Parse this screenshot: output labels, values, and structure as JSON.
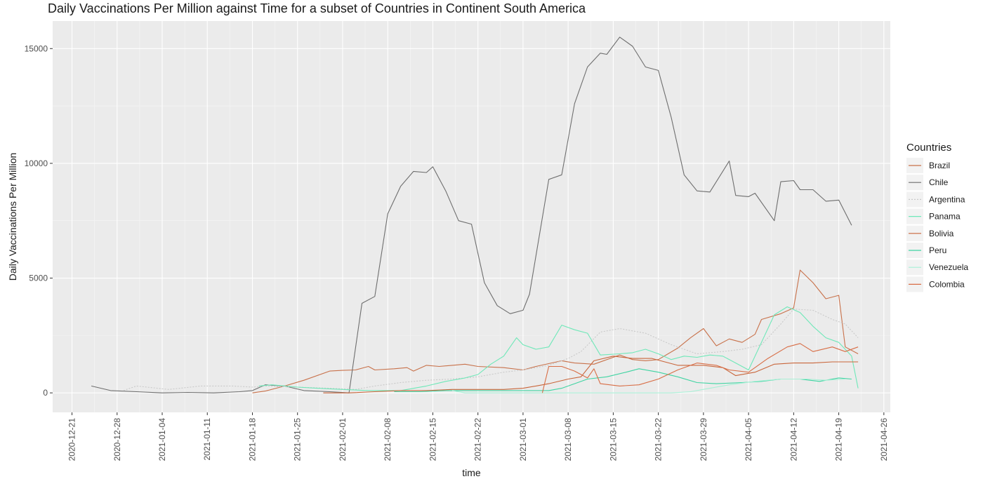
{
  "chart_data": {
    "type": "line",
    "title": "Daily Vaccinations Per Million against Time for a subset of Countries in Continent South America",
    "xlabel": "time",
    "ylabel": "Daily Vaccinations Per Million",
    "x_ticks": [
      "2020-12-21",
      "2020-12-28",
      "2021-01-04",
      "2021-01-11",
      "2021-01-18",
      "2021-01-25",
      "2021-02-01",
      "2021-02-08",
      "2021-02-15",
      "2021-02-22",
      "2021-03-01",
      "2021-03-08",
      "2021-03-15",
      "2021-03-22",
      "2021-03-29",
      "2021-04-05",
      "2021-04-12",
      "2021-04-19",
      "2021-04-26"
    ],
    "y_ticks": [
      0,
      5000,
      10000,
      15000
    ],
    "xlim": [
      "2020-12-18",
      "2021-04-27"
    ],
    "ylim": [
      -850,
      16200
    ],
    "grid": true,
    "legend_placement": "right",
    "legend_title": "Countries",
    "series": [
      {
        "name": "Brazil",
        "color": "#c8714a",
        "dash": "",
        "points": [
          [
            "2021-01-18",
            0
          ],
          [
            "2021-01-20",
            80
          ],
          [
            "2021-01-23",
            300
          ],
          [
            "2021-01-26",
            550
          ],
          [
            "2021-01-30",
            950
          ],
          [
            "2021-02-01",
            980
          ],
          [
            "2021-02-03",
            1000
          ],
          [
            "2021-02-05",
            1150
          ],
          [
            "2021-02-06",
            1000
          ],
          [
            "2021-02-09",
            1050
          ],
          [
            "2021-02-11",
            1100
          ],
          [
            "2021-02-12",
            950
          ],
          [
            "2021-02-14",
            1200
          ],
          [
            "2021-02-16",
            1150
          ],
          [
            "2021-02-18",
            1200
          ],
          [
            "2021-02-20",
            1250
          ],
          [
            "2021-02-22",
            1150
          ],
          [
            "2021-02-26",
            1100
          ],
          [
            "2021-03-01",
            1000
          ],
          [
            "2021-03-03",
            1150
          ],
          [
            "2021-03-07",
            1400
          ],
          [
            "2021-03-09",
            1300
          ],
          [
            "2021-03-12",
            1250
          ],
          [
            "2021-03-16",
            1650
          ],
          [
            "2021-03-18",
            1450
          ],
          [
            "2021-03-20",
            1400
          ],
          [
            "2021-03-22",
            1450
          ],
          [
            "2021-03-25",
            1950
          ],
          [
            "2021-03-27",
            2400
          ],
          [
            "2021-03-29",
            2800
          ],
          [
            "2021-03-31",
            2050
          ],
          [
            "2021-04-02",
            2350
          ],
          [
            "2021-04-04",
            2200
          ],
          [
            "2021-04-06",
            2550
          ],
          [
            "2021-04-07",
            3200
          ],
          [
            "2021-04-10",
            3450
          ],
          [
            "2021-04-12",
            3700
          ],
          [
            "2021-04-13",
            5350
          ],
          [
            "2021-04-15",
            4800
          ],
          [
            "2021-04-17",
            4100
          ],
          [
            "2021-04-19",
            4250
          ],
          [
            "2021-04-20",
            2000
          ],
          [
            "2021-04-22",
            1700
          ]
        ]
      },
      {
        "name": "Chile",
        "color": "#6e6e6e",
        "dash": "",
        "points": [
          [
            "2020-12-24",
            300
          ],
          [
            "2020-12-27",
            100
          ],
          [
            "2020-12-31",
            50
          ],
          [
            "2021-01-04",
            0
          ],
          [
            "2021-01-08",
            20
          ],
          [
            "2021-01-12",
            0
          ],
          [
            "2021-01-16",
            50
          ],
          [
            "2021-01-18",
            100
          ],
          [
            "2021-01-20",
            350
          ],
          [
            "2021-01-23",
            300
          ],
          [
            "2021-01-26",
            100
          ],
          [
            "2021-01-30",
            50
          ],
          [
            "2021-02-02",
            0
          ],
          [
            "2021-02-04",
            3900
          ],
          [
            "2021-02-06",
            4200
          ],
          [
            "2021-02-08",
            7800
          ],
          [
            "2021-02-10",
            9000
          ],
          [
            "2021-02-12",
            9650
          ],
          [
            "2021-02-14",
            9600
          ],
          [
            "2021-02-15",
            9850
          ],
          [
            "2021-02-17",
            8800
          ],
          [
            "2021-02-19",
            7500
          ],
          [
            "2021-02-21",
            7350
          ],
          [
            "2021-02-23",
            4800
          ],
          [
            "2021-02-25",
            3800
          ],
          [
            "2021-02-27",
            3450
          ],
          [
            "2021-03-01",
            3600
          ],
          [
            "2021-03-02",
            4300
          ],
          [
            "2021-03-05",
            9300
          ],
          [
            "2021-03-07",
            9500
          ],
          [
            "2021-03-09",
            12600
          ],
          [
            "2021-03-11",
            14200
          ],
          [
            "2021-03-13",
            14800
          ],
          [
            "2021-03-14",
            14750
          ],
          [
            "2021-03-16",
            15500
          ],
          [
            "2021-03-18",
            15100
          ],
          [
            "2021-03-20",
            14200
          ],
          [
            "2021-03-22",
            14050
          ],
          [
            "2021-03-24",
            12000
          ],
          [
            "2021-03-26",
            9500
          ],
          [
            "2021-03-28",
            8800
          ],
          [
            "2021-03-30",
            8750
          ],
          [
            "2021-04-02",
            10100
          ],
          [
            "2021-04-03",
            8600
          ],
          [
            "2021-04-05",
            8550
          ],
          [
            "2021-04-06",
            8700
          ],
          [
            "2021-04-09",
            7500
          ],
          [
            "2021-04-10",
            9200
          ],
          [
            "2021-04-12",
            9250
          ],
          [
            "2021-04-13",
            8850
          ],
          [
            "2021-04-15",
            8850
          ],
          [
            "2021-04-17",
            8350
          ],
          [
            "2021-04-19",
            8400
          ],
          [
            "2021-04-21",
            7300
          ]
        ]
      },
      {
        "name": "Argentina",
        "color": "#c9c9c9",
        "dash": "2,2",
        "points": [
          [
            "2020-12-29",
            100
          ],
          [
            "2020-12-31",
            300
          ],
          [
            "2021-01-05",
            150
          ],
          [
            "2021-01-10",
            300
          ],
          [
            "2021-01-15",
            300
          ],
          [
            "2021-01-18",
            250
          ],
          [
            "2021-01-20",
            300
          ],
          [
            "2021-01-25",
            250
          ],
          [
            "2021-01-30",
            200
          ],
          [
            "2021-02-03",
            150
          ],
          [
            "2021-02-06",
            300
          ],
          [
            "2021-02-10",
            450
          ],
          [
            "2021-02-14",
            550
          ],
          [
            "2021-02-18",
            600
          ],
          [
            "2021-02-22",
            700
          ],
          [
            "2021-02-26",
            900
          ],
          [
            "2021-03-01",
            1000
          ],
          [
            "2021-03-05",
            1200
          ],
          [
            "2021-03-08",
            1500
          ],
          [
            "2021-03-10",
            1800
          ],
          [
            "2021-03-13",
            2650
          ],
          [
            "2021-03-16",
            2800
          ],
          [
            "2021-03-20",
            2600
          ],
          [
            "2021-03-24",
            2100
          ],
          [
            "2021-03-28",
            1700
          ],
          [
            "2021-04-01",
            1800
          ],
          [
            "2021-04-04",
            1900
          ],
          [
            "2021-04-07",
            2100
          ],
          [
            "2021-04-10",
            3000
          ],
          [
            "2021-04-12",
            3650
          ],
          [
            "2021-04-15",
            3600
          ],
          [
            "2021-04-18",
            3200
          ],
          [
            "2021-04-20",
            3000
          ],
          [
            "2021-04-22",
            2400
          ]
        ]
      },
      {
        "name": "Panama",
        "color": "#6ee8b8",
        "dash": "",
        "points": [
          [
            "2021-01-19",
            300
          ],
          [
            "2021-01-21",
            350
          ],
          [
            "2021-01-25",
            250
          ],
          [
            "2021-01-28",
            200
          ],
          [
            "2021-02-01",
            150
          ],
          [
            "2021-02-05",
            100
          ],
          [
            "2021-02-10",
            100
          ],
          [
            "2021-02-14",
            300
          ],
          [
            "2021-02-17",
            500
          ],
          [
            "2021-02-20",
            650
          ],
          [
            "2021-02-22",
            800
          ],
          [
            "2021-02-24",
            1250
          ],
          [
            "2021-02-26",
            1600
          ],
          [
            "2021-02-28",
            2400
          ],
          [
            "2021-03-01",
            2100
          ],
          [
            "2021-03-03",
            1900
          ],
          [
            "2021-03-05",
            2000
          ],
          [
            "2021-03-07",
            2950
          ],
          [
            "2021-03-09",
            2750
          ],
          [
            "2021-03-11",
            2600
          ],
          [
            "2021-03-13",
            1650
          ],
          [
            "2021-03-16",
            1700
          ],
          [
            "2021-03-18",
            1750
          ],
          [
            "2021-03-20",
            1900
          ],
          [
            "2021-03-22",
            1700
          ],
          [
            "2021-03-24",
            1450
          ],
          [
            "2021-03-26",
            1600
          ],
          [
            "2021-03-28",
            1550
          ],
          [
            "2021-03-30",
            1650
          ],
          [
            "2021-04-01",
            1600
          ],
          [
            "2021-04-03",
            1300
          ],
          [
            "2021-04-05",
            1000
          ],
          [
            "2021-04-07",
            2200
          ],
          [
            "2021-04-09",
            3400
          ],
          [
            "2021-04-11",
            3750
          ],
          [
            "2021-04-13",
            3500
          ],
          [
            "2021-04-15",
            2900
          ],
          [
            "2021-04-17",
            2400
          ],
          [
            "2021-04-19",
            2200
          ],
          [
            "2021-04-21",
            1600
          ],
          [
            "2021-04-22",
            200
          ]
        ]
      },
      {
        "name": "Bolivia",
        "color": "#c9653a",
        "dash": "",
        "points": [
          [
            "2021-01-29",
            0
          ],
          [
            "2021-02-02",
            0
          ],
          [
            "2021-02-06",
            50
          ],
          [
            "2021-02-10",
            100
          ],
          [
            "2021-02-14",
            100
          ],
          [
            "2021-02-18",
            150
          ],
          [
            "2021-02-22",
            150
          ],
          [
            "2021-02-26",
            150
          ],
          [
            "2021-03-01",
            200
          ],
          [
            "2021-03-03",
            300
          ],
          [
            "2021-03-05",
            400
          ],
          [
            "2021-03-08",
            600
          ],
          [
            "2021-03-10",
            700
          ],
          [
            "2021-03-12",
            1400
          ],
          [
            "2021-03-15",
            1600
          ],
          [
            "2021-03-18",
            1500
          ],
          [
            "2021-03-21",
            1500
          ],
          [
            "2021-03-25",
            1200
          ],
          [
            "2021-03-29",
            1200
          ],
          [
            "2021-04-01",
            1100
          ],
          [
            "2021-04-03",
            750
          ],
          [
            "2021-04-06",
            900
          ],
          [
            "2021-04-09",
            1250
          ],
          [
            "2021-04-12",
            1300
          ],
          [
            "2021-04-15",
            1300
          ],
          [
            "2021-04-18",
            1350
          ],
          [
            "2021-04-22",
            1350
          ]
        ]
      },
      {
        "name": "Peru",
        "color": "#3fd4a2",
        "dash": "",
        "points": [
          [
            "2021-02-09",
            50
          ],
          [
            "2021-02-13",
            50
          ],
          [
            "2021-02-17",
            100
          ],
          [
            "2021-02-21",
            100
          ],
          [
            "2021-02-25",
            100
          ],
          [
            "2021-03-01",
            100
          ],
          [
            "2021-03-05",
            100
          ],
          [
            "2021-03-07",
            200
          ],
          [
            "2021-03-09",
            400
          ],
          [
            "2021-03-11",
            600
          ],
          [
            "2021-03-14",
            700
          ],
          [
            "2021-03-17",
            900
          ],
          [
            "2021-03-19",
            1050
          ],
          [
            "2021-03-22",
            900
          ],
          [
            "2021-03-25",
            700
          ],
          [
            "2021-03-28",
            450
          ],
          [
            "2021-03-31",
            400
          ],
          [
            "2021-04-04",
            450
          ],
          [
            "2021-04-07",
            500
          ],
          [
            "2021-04-10",
            600
          ],
          [
            "2021-04-13",
            600
          ],
          [
            "2021-04-16",
            500
          ],
          [
            "2021-04-19",
            650
          ],
          [
            "2021-04-21",
            600
          ]
        ]
      },
      {
        "name": "Venezuela",
        "color": "#a8f0d6",
        "dash": "",
        "points": [
          [
            "2021-02-18",
            100
          ],
          [
            "2021-02-20",
            0
          ],
          [
            "2021-02-24",
            0
          ],
          [
            "2021-02-28",
            0
          ],
          [
            "2021-03-04",
            0
          ],
          [
            "2021-03-08",
            0
          ],
          [
            "2021-03-12",
            0
          ],
          [
            "2021-03-16",
            0
          ],
          [
            "2021-03-20",
            0
          ],
          [
            "2021-03-24",
            0
          ],
          [
            "2021-03-27",
            50
          ],
          [
            "2021-03-30",
            200
          ],
          [
            "2021-04-02",
            350
          ],
          [
            "2021-04-06",
            500
          ],
          [
            "2021-04-10",
            600
          ],
          [
            "2021-04-14",
            600
          ],
          [
            "2021-04-17",
            550
          ],
          [
            "2021-04-20",
            600
          ]
        ]
      },
      {
        "name": "Colombia",
        "color": "#d86d45",
        "dash": "",
        "points": [
          [
            "2021-03-04",
            0
          ],
          [
            "2021-03-05",
            1150
          ],
          [
            "2021-03-07",
            1150
          ],
          [
            "2021-03-09",
            950
          ],
          [
            "2021-03-11",
            650
          ],
          [
            "2021-03-12",
            1050
          ],
          [
            "2021-03-13",
            400
          ],
          [
            "2021-03-16",
            300
          ],
          [
            "2021-03-19",
            350
          ],
          [
            "2021-03-22",
            600
          ],
          [
            "2021-03-25",
            1000
          ],
          [
            "2021-03-28",
            1300
          ],
          [
            "2021-03-31",
            1200
          ],
          [
            "2021-04-02",
            1000
          ],
          [
            "2021-04-05",
            900
          ],
          [
            "2021-04-08",
            1500
          ],
          [
            "2021-04-11",
            2000
          ],
          [
            "2021-04-13",
            2150
          ],
          [
            "2021-04-15",
            1800
          ],
          [
            "2021-04-18",
            2000
          ],
          [
            "2021-04-20",
            1800
          ],
          [
            "2021-04-22",
            2000
          ]
        ]
      }
    ]
  }
}
